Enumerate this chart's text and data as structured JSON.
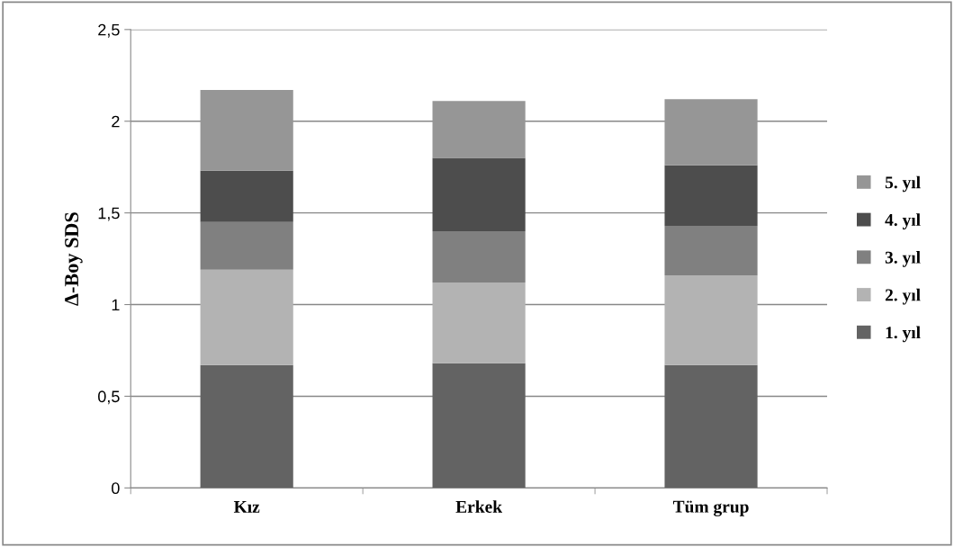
{
  "chart_data": {
    "type": "bar",
    "stacked": true,
    "ylabel": "Δ-Boy SDS",
    "categories": [
      "Kız",
      "Erkek",
      "Tüm grup"
    ],
    "series": [
      {
        "name": "1. yıl",
        "color": "#636363",
        "values": [
          0.67,
          0.68,
          0.67
        ]
      },
      {
        "name": "2. yıl",
        "color": "#b3b3b3",
        "values": [
          0.52,
          0.44,
          0.49
        ]
      },
      {
        "name": "3. yıl",
        "color": "#808080",
        "values": [
          0.26,
          0.28,
          0.27
        ]
      },
      {
        "name": "4. yıl",
        "color": "#4d4d4d",
        "values": [
          0.28,
          0.4,
          0.33
        ]
      },
      {
        "name": "5. yıl",
        "color": "#969696",
        "values": [
          0.44,
          0.31,
          0.36
        ]
      }
    ],
    "ylim": [
      0,
      2.5
    ],
    "yticks": [
      0,
      {
        "value": 0.5,
        "label": "0,5"
      },
      1,
      {
        "value": 1.5,
        "label": "1,5"
      },
      2,
      {
        "value": 2.5,
        "label": "2,5"
      }
    ],
    "grid": "y",
    "legend": "right"
  }
}
